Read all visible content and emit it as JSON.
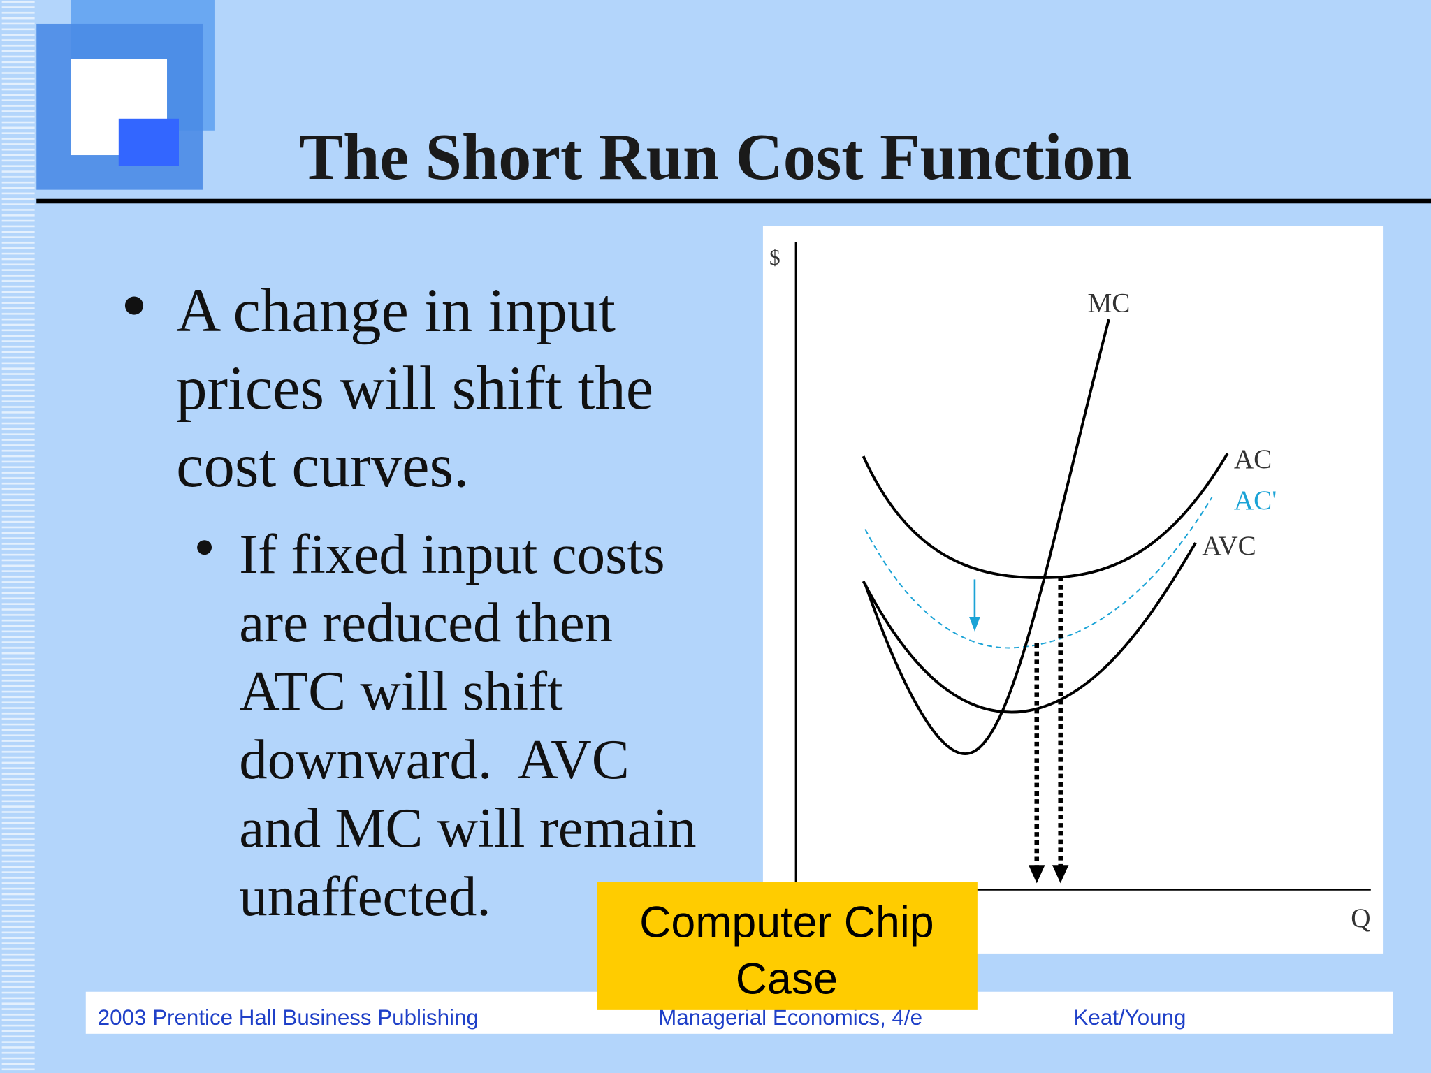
{
  "header": {
    "title": "The Short Run Cost Function"
  },
  "bullet": {
    "lines": [
      "A change in input",
      "prices will shift the",
      "cost curves."
    ]
  },
  "sub_bullet": {
    "lines": [
      "If fixed input costs",
      "are reduced then",
      "ATC will shift",
      "downward.  AVC",
      "and MC will remain",
      "unaffected."
    ]
  },
  "diagram": {
    "y_axis_label": "$",
    "x_axis_label": "Q",
    "curve_labels": {
      "mc": "MC",
      "ac": "AC",
      "ac_new": "AC'",
      "avc": "AVC"
    }
  },
  "callout": {
    "lines": [
      "Computer Chip",
      "Case"
    ]
  },
  "footer": {
    "left": "2003 Prentice Hall Business Publishing",
    "center": "Managerial Economics, 4/e",
    "right": "Keat/Young"
  }
}
